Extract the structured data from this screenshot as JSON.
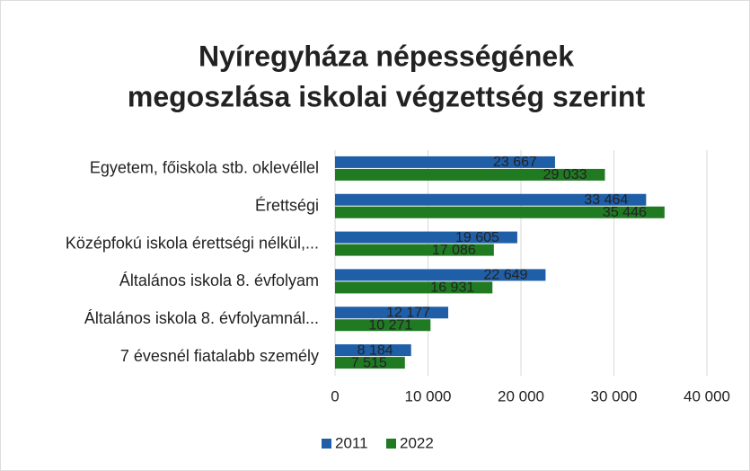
{
  "chart_data": {
    "type": "hbar",
    "title": "Nyíregyháza népességének megoszlása iskolai végzettség szerint",
    "title_lines": [
      "Nyíregyháza népességének",
      "megoszlása iskolai végzettség szerint"
    ],
    "categories": [
      "Egyetem, főiskola stb. oklevéllel",
      "Érettségi",
      "Középfokú iskola érettségi nélkül,...",
      "Általános iskola 8. évfolyam",
      "Általános iskola 8. évfolyamnál...",
      "7 évesnél fiatalabb személy"
    ],
    "series": [
      {
        "name": "2011",
        "color": "#1f5fa8",
        "values": [
          23667,
          33464,
          19605,
          22649,
          12177,
          8184
        ],
        "value_labels": [
          "23 667",
          "33 464",
          "19 605",
          "22 649",
          "12 177",
          "8 184"
        ]
      },
      {
        "name": "2022",
        "color": "#1f7a22",
        "values": [
          29033,
          35446,
          17086,
          16931,
          10271,
          7515
        ],
        "value_labels": [
          "29 033",
          "35 446",
          "17 086",
          "16 931",
          "10 271",
          "7 515"
        ]
      }
    ],
    "xlim": [
      0,
      40000
    ],
    "xticks": [
      0,
      {
        "value": 10000,
        "label": "10 000"
      },
      {
        "value": 20000,
        "label": "20 000"
      },
      {
        "value": 30000,
        "label": "30 000"
      },
      {
        "value": 40000,
        "label": "40 000"
      }
    ],
    "grid": true,
    "legend": "bottom"
  }
}
